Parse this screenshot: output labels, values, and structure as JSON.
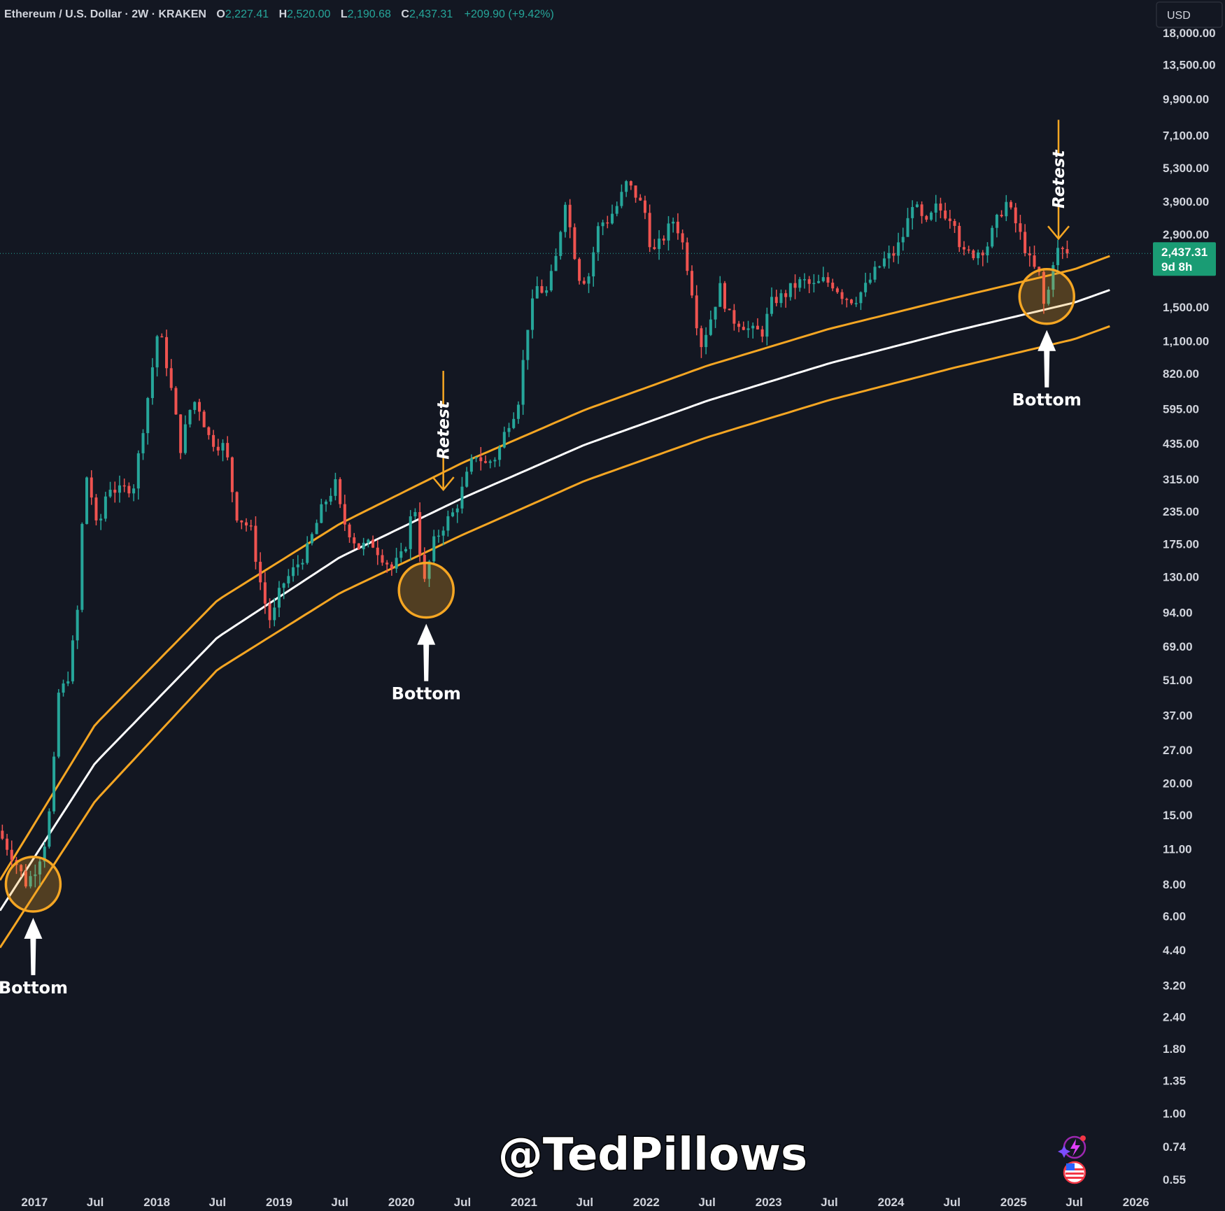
{
  "header": {
    "symbol": "Ethereum / U.S. Dollar · 2W · KRAKEN",
    "open_label": "O",
    "open_value": "2,227.41",
    "high_label": "H",
    "high_value": "2,520.00",
    "low_label": "L",
    "low_value": "2,190.68",
    "close_label": "C",
    "close_value": "2,437.31",
    "change": "+209.90 (+9.42%)"
  },
  "currency_button": "USD",
  "price_tag": {
    "price": "2,437.31",
    "countdown": "9d 8h"
  },
  "watermark": "@TedPillows",
  "colors": {
    "background": "#131722",
    "up": "#26a69a",
    "down": "#ef5350",
    "band": "#f5a623",
    "midline": "#ffffff",
    "axis_text": "#d1d4dc"
  },
  "icons": [
    "sparkle-lightning-icon",
    "us-flag-icon"
  ],
  "chart_data": {
    "type": "candlestick",
    "title": "Ethereum / U.S. Dollar · 2W · KRAKEN",
    "y_scale": "log",
    "ylim": [
      0.5,
      19000
    ],
    "xlim": [
      "2016-09-20",
      "2026-02-25"
    ],
    "y_ticks": [
      "0.55",
      "0.74",
      "1.00",
      "1.35",
      "1.80",
      "2.40",
      "3.20",
      "4.40",
      "6.00",
      "8.00",
      "11.00",
      "15.00",
      "20.00",
      "27.00",
      "37.00",
      "51.00",
      "69.00",
      "94.00",
      "130.00",
      "175.00",
      "235.00",
      "315.00",
      "435.00",
      "595.00",
      "820.00",
      "1,100.00",
      "1,500.00",
      "2,900.00",
      "3,900.00",
      "5,300.00",
      "7,100.00",
      "9,900.00",
      "13,500.00",
      "18,000.00"
    ],
    "x_ticks": [
      {
        "label": "2017",
        "date": "2017-01-01"
      },
      {
        "label": "Jul",
        "date": "2017-07-01"
      },
      {
        "label": "2018",
        "date": "2018-01-01"
      },
      {
        "label": "Jul",
        "date": "2018-07-01"
      },
      {
        "label": "2019",
        "date": "2019-01-01"
      },
      {
        "label": "Jul",
        "date": "2019-07-01"
      },
      {
        "label": "2020",
        "date": "2020-01-01"
      },
      {
        "label": "Jul",
        "date": "2020-07-01"
      },
      {
        "label": "2021",
        "date": "2021-01-01"
      },
      {
        "label": "Jul",
        "date": "2021-07-01"
      },
      {
        "label": "2022",
        "date": "2022-01-01"
      },
      {
        "label": "Jul",
        "date": "2022-07-01"
      },
      {
        "label": "2023",
        "date": "2023-01-01"
      },
      {
        "label": "Jul",
        "date": "2023-07-01"
      },
      {
        "label": "2024",
        "date": "2024-01-01"
      },
      {
        "label": "Jul",
        "date": "2024-07-01"
      },
      {
        "label": "2025",
        "date": "2025-01-01"
      },
      {
        "label": "Jul",
        "date": "2025-07-01"
      },
      {
        "label": "2026",
        "date": "2026-01-01"
      }
    ],
    "last_close": 2437.31,
    "price_path": [
      [
        "2016-09-20",
        13
      ],
      [
        "2016-11-01",
        10.5
      ],
      [
        "2016-12-15",
        8.0
      ],
      [
        "2017-01-15",
        9.5
      ],
      [
        "2017-02-10",
        12
      ],
      [
        "2017-03-01",
        18
      ],
      [
        "2017-03-20",
        45
      ],
      [
        "2017-04-15",
        50
      ],
      [
        "2017-05-15",
        90
      ],
      [
        "2017-06-01",
        230
      ],
      [
        "2017-06-15",
        340
      ],
      [
        "2017-07-15",
        190
      ],
      [
        "2017-08-15",
        300
      ],
      [
        "2017-09-15",
        280
      ],
      [
        "2017-11-01",
        300
      ],
      [
        "2017-11-25",
        480
      ],
      [
        "2017-12-15",
        700
      ],
      [
        "2018-01-13",
        1250
      ],
      [
        "2018-02-10",
        850
      ],
      [
        "2018-03-20",
        420
      ],
      [
        "2018-04-25",
        650
      ],
      [
        "2018-05-15",
        600
      ],
      [
        "2018-06-15",
        450
      ],
      [
        "2018-08-01",
        420
      ],
      [
        "2018-09-01",
        230
      ],
      [
        "2018-10-15",
        200
      ],
      [
        "2018-11-20",
        110
      ],
      [
        "2018-12-15",
        85
      ],
      [
        "2019-01-15",
        120
      ],
      [
        "2019-02-15",
        135
      ],
      [
        "2019-04-01",
        165
      ],
      [
        "2019-05-20",
        250
      ],
      [
        "2019-06-25",
        300
      ],
      [
        "2019-07-15",
        220
      ],
      [
        "2019-09-01",
        170
      ],
      [
        "2019-10-15",
        175
      ],
      [
        "2019-12-10",
        140
      ],
      [
        "2020-01-15",
        160
      ],
      [
        "2020-02-15",
        260
      ],
      [
        "2020-03-15",
        120
      ],
      [
        "2020-04-15",
        180
      ],
      [
        "2020-05-15",
        210
      ],
      [
        "2020-06-15",
        235
      ],
      [
        "2020-07-20",
        320
      ],
      [
        "2020-08-15",
        400
      ],
      [
        "2020-09-15",
        360
      ],
      [
        "2020-10-20",
        390
      ],
      [
        "2020-11-20",
        520
      ],
      [
        "2020-12-20",
        620
      ],
      [
        "2021-01-20",
        1300
      ],
      [
        "2021-02-15",
        1800
      ],
      [
        "2021-03-15",
        1700
      ],
      [
        "2021-04-10",
        2200
      ],
      [
        "2021-05-11",
        4000
      ],
      [
        "2021-06-01",
        2700
      ],
      [
        "2021-06-25",
        1900
      ],
      [
        "2021-07-20",
        2000
      ],
      [
        "2021-08-20",
        3200
      ],
      [
        "2021-09-15",
        3300
      ],
      [
        "2021-10-15",
        3800
      ],
      [
        "2021-11-10",
        4600
      ],
      [
        "2021-12-10",
        4100
      ],
      [
        "2022-01-05",
        3500
      ],
      [
        "2022-01-25",
        2400
      ],
      [
        "2022-02-20",
        2700
      ],
      [
        "2022-03-30",
        3300
      ],
      [
        "2022-04-20",
        2900
      ],
      [
        "2022-05-20",
        1900
      ],
      [
        "2022-06-18",
        1050
      ],
      [
        "2022-07-15",
        1300
      ],
      [
        "2022-08-15",
        1800
      ],
      [
        "2022-09-15",
        1350
      ],
      [
        "2022-10-20",
        1300
      ],
      [
        "2022-11-15",
        1200
      ],
      [
        "2022-12-20",
        1200
      ],
      [
        "2023-01-20",
        1600
      ],
      [
        "2023-02-20",
        1650
      ],
      [
        "2023-03-20",
        1800
      ],
      [
        "2023-04-20",
        1900
      ],
      [
        "2023-05-20",
        1800
      ],
      [
        "2023-06-20",
        1900
      ],
      [
        "2023-07-20",
        1850
      ],
      [
        "2023-08-20",
        1650
      ],
      [
        "2023-09-20",
        1600
      ],
      [
        "2023-10-25",
        1800
      ],
      [
        "2023-11-20",
        2050
      ],
      [
        "2023-12-20",
        2300
      ],
      [
        "2024-01-20",
        2450
      ],
      [
        "2024-02-20",
        3000
      ],
      [
        "2024-03-12",
        3900
      ],
      [
        "2024-04-20",
        3100
      ],
      [
        "2024-05-22",
        3700
      ],
      [
        "2024-06-20",
        3500
      ],
      [
        "2024-07-20",
        3300
      ],
      [
        "2024-08-05",
        2400
      ],
      [
        "2024-09-15",
        2450
      ],
      [
        "2024-10-20",
        2600
      ],
      [
        "2024-11-20",
        3300
      ],
      [
        "2024-12-15",
        3900
      ],
      [
        "2025-01-10",
        3300
      ],
      [
        "2025-02-05",
        2700
      ],
      [
        "2025-03-01",
        2200
      ],
      [
        "2025-03-25",
        2000
      ],
      [
        "2025-04-09",
        1500
      ],
      [
        "2025-04-25",
        1800
      ],
      [
        "2025-05-10",
        2500
      ],
      [
        "2025-06-01",
        2500
      ],
      [
        "2025-06-15",
        2350
      ]
    ],
    "bands": {
      "anchor_dates": [
        "2016-09-20",
        "2017-07-01",
        "2018-07-01",
        "2019-07-01",
        "2020-07-01",
        "2021-07-01",
        "2022-07-01",
        "2023-07-01",
        "2024-07-01",
        "2025-07-01",
        "2025-10-15"
      ],
      "middle": [
        6.3,
        24,
        75,
        155,
        265,
        430,
        640,
        900,
        1200,
        1560,
        1750
      ],
      "upper": [
        8.3,
        34,
        105,
        210,
        365,
        590,
        880,
        1230,
        1620,
        2110,
        2380
      ],
      "lower": [
        4.5,
        17,
        56,
        112,
        190,
        310,
        460,
        645,
        860,
        1120,
        1260
      ]
    },
    "annotations": [
      {
        "text": "Bottom",
        "kind": "circle-arrow-up",
        "date": "2016-12-28",
        "price": 8.0
      },
      {
        "text": "Bottom",
        "kind": "circle-arrow-up",
        "date": "2020-03-15",
        "price": 115
      },
      {
        "text": "Bottom",
        "kind": "circle-arrow-up",
        "date": "2025-04-10",
        "price": 1650
      },
      {
        "text": "Retest",
        "kind": "arrow-down",
        "date": "2020-05-05",
        "price": 265
      },
      {
        "text": "Retest",
        "kind": "arrow-down",
        "date": "2025-05-15",
        "price": 2580
      }
    ]
  }
}
